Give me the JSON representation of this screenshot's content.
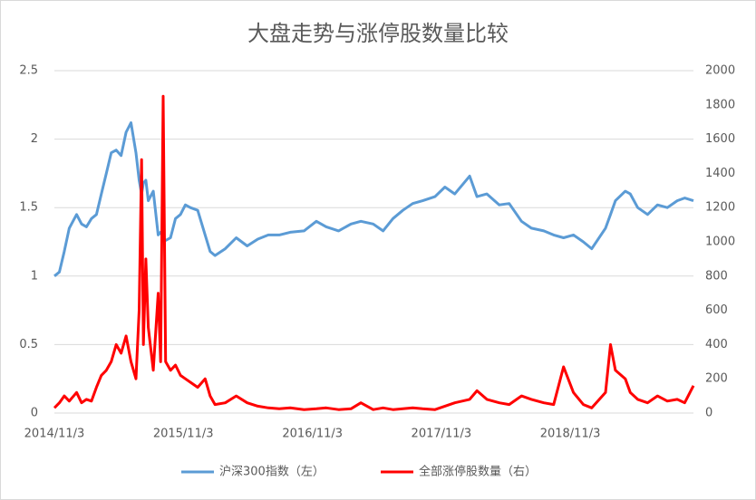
{
  "chart_data": {
    "type": "line",
    "title": "大盘走势与涨停股数量比较",
    "x": [
      "2014/11/3",
      "2014/11/17",
      "2014/12/1",
      "2014/12/15",
      "2015/1/5",
      "2015/1/19",
      "2015/2/2",
      "2015/2/16",
      "2015/3/2",
      "2015/3/16",
      "2015/3/30",
      "2015/4/13",
      "2015/4/27",
      "2015/5/11",
      "2015/5/25",
      "2015/6/8",
      "2015/6/22",
      "2015/7/1",
      "2015/7/8",
      "2015/7/13",
      "2015/7/20",
      "2015/7/27",
      "2015/8/10",
      "2015/8/24",
      "2015/8/31",
      "2015/9/7",
      "2015/9/14",
      "2015/9/28",
      "2015/10/12",
      "2015/10/26",
      "2015/11/9",
      "2015/11/23",
      "2015/12/14",
      "2016/1/4",
      "2016/1/18",
      "2016/2/1",
      "2016/3/1",
      "2016/4/1",
      "2016/5/2",
      "2016/6/1",
      "2016/7/1",
      "2016/8/1",
      "2016/9/1",
      "2016/10/10",
      "2016/11/14",
      "2016/12/12",
      "2017/1/16",
      "2017/2/20",
      "2017/3/20",
      "2017/4/24",
      "2017/5/22",
      "2017/6/19",
      "2017/7/17",
      "2017/8/14",
      "2017/9/11",
      "2017/10/16",
      "2017/11/13",
      "2017/12/11",
      "2018/1/22",
      "2018/2/12",
      "2018/3/12",
      "2018/4/16",
      "2018/5/14",
      "2018/6/18",
      "2018/7/16",
      "2018/8/20",
      "2018/9/17",
      "2018/10/15",
      "2018/11/12",
      "2018/12/10",
      "2019/1/3",
      "2019/2/11",
      "2019/2/25",
      "2019/3/11",
      "2019/4/8",
      "2019/4/22",
      "2019/5/13",
      "2019/6/10",
      "2019/7/8",
      "2019/8/5",
      "2019/9/2",
      "2019/9/23",
      "2019/10/18"
    ],
    "series": [
      {
        "name": "沪深300指数（左）",
        "color": "#5b9bd5",
        "axis": "y",
        "values": [
          1.0,
          1.03,
          1.18,
          1.35,
          1.45,
          1.38,
          1.36,
          1.42,
          1.45,
          1.6,
          1.75,
          1.9,
          1.92,
          1.88,
          2.05,
          2.12,
          1.9,
          1.7,
          1.6,
          1.68,
          1.7,
          1.55,
          1.62,
          1.3,
          1.32,
          1.28,
          1.26,
          1.28,
          1.42,
          1.45,
          1.52,
          1.5,
          1.48,
          1.3,
          1.18,
          1.15,
          1.2,
          1.28,
          1.22,
          1.27,
          1.3,
          1.3,
          1.32,
          1.33,
          1.4,
          1.36,
          1.33,
          1.38,
          1.4,
          1.38,
          1.33,
          1.42,
          1.48,
          1.53,
          1.55,
          1.58,
          1.65,
          1.6,
          1.73,
          1.58,
          1.6,
          1.52,
          1.53,
          1.4,
          1.35,
          1.33,
          1.3,
          1.28,
          1.3,
          1.25,
          1.2,
          1.35,
          1.45,
          1.55,
          1.62,
          1.6,
          1.5,
          1.45,
          1.52,
          1.5,
          1.55,
          1.57,
          1.55
        ]
      },
      {
        "name": "全部涨停股数量（右）",
        "color": "#ff0000",
        "axis": "y2",
        "values": [
          30,
          60,
          100,
          70,
          120,
          60,
          80,
          70,
          150,
          220,
          250,
          300,
          400,
          350,
          450,
          300,
          200,
          600,
          1480,
          400,
          900,
          500,
          250,
          700,
          300,
          1850,
          300,
          250,
          280,
          220,
          200,
          180,
          150,
          200,
          100,
          50,
          60,
          100,
          60,
          40,
          30,
          25,
          30,
          20,
          25,
          30,
          20,
          25,
          60,
          20,
          30,
          20,
          25,
          30,
          25,
          20,
          40,
          60,
          80,
          130,
          80,
          60,
          50,
          100,
          80,
          60,
          50,
          270,
          120,
          50,
          30,
          120,
          400,
          250,
          200,
          120,
          80,
          60,
          100,
          70,
          80,
          60,
          160
        ]
      }
    ],
    "xlim": [
      "2014/11/3",
      "2019/10/18"
    ],
    "xticks": [
      "2014/11/3",
      "2015/11/3",
      "2016/11/3",
      "2017/11/3",
      "2018/11/3"
    ],
    "ylim": [
      0,
      2.5
    ],
    "yticks": [
      0,
      0.5,
      1,
      1.5,
      2,
      2.5
    ],
    "y2lim": [
      0,
      2000
    ],
    "y2ticks": [
      0,
      200,
      400,
      600,
      800,
      1000,
      1200,
      1400,
      1600,
      1800,
      2000
    ],
    "grid": true,
    "legend": "bottom"
  }
}
